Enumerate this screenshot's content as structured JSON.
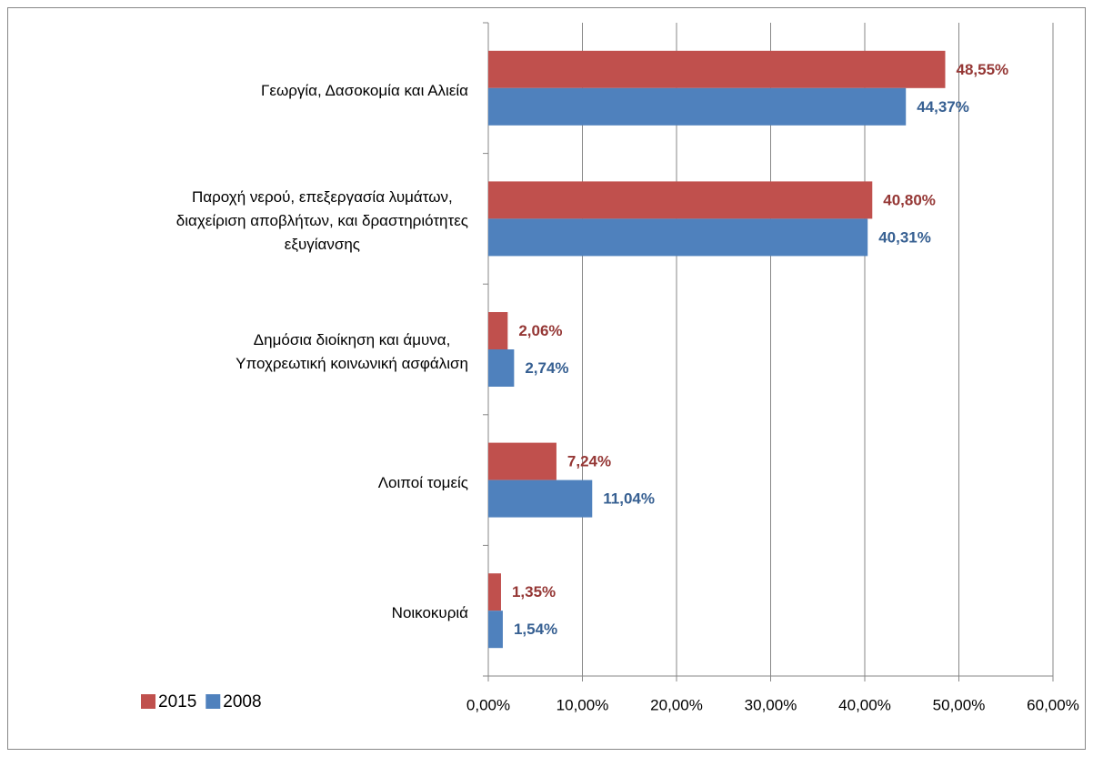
{
  "chart_data": {
    "type": "barh",
    "categories": [
      "Γεωργία, Δασοκομία και Αλιεία",
      "Παροχή νερού, επεξεργασία λυμάτων,\nδιαχείριση αποβλήτων, και δραστηριότητες\nεξυγίανσης",
      "Δημόσια διοίκηση και άμυνα,\nΥποχρεωτική κοινωνική ασφάλιση",
      "Λοιποί τομείς",
      "Νοικοκυριά"
    ],
    "series": [
      {
        "name": "2015",
        "color": "#c0504d",
        "label_color": "#953735",
        "values": [
          48.55,
          40.8,
          2.06,
          7.24,
          1.35
        ],
        "value_labels": [
          "48,55%",
          "40,80%",
          "2,06%",
          "7,24%",
          "1,35%"
        ]
      },
      {
        "name": "2008",
        "color": "#4f81bd",
        "label_color": "#376092",
        "values": [
          44.37,
          40.31,
          2.74,
          11.04,
          1.54
        ],
        "value_labels": [
          "44,37%",
          "40,31%",
          "2,74%",
          "11,04%",
          "1,54%"
        ]
      }
    ],
    "xlim": [
      0,
      60
    ],
    "xticks": [
      {
        "value": 0,
        "label": "0,00%"
      },
      {
        "value": 10,
        "label": "10,00%"
      },
      {
        "value": 20,
        "label": "20,00%"
      },
      {
        "value": 30,
        "label": "30,00%"
      },
      {
        "value": 40,
        "label": "40,00%"
      },
      {
        "value": 50,
        "label": "50,00%"
      },
      {
        "value": 60,
        "label": "60,00%"
      }
    ],
    "grid": true,
    "legend": "bottom-left"
  }
}
